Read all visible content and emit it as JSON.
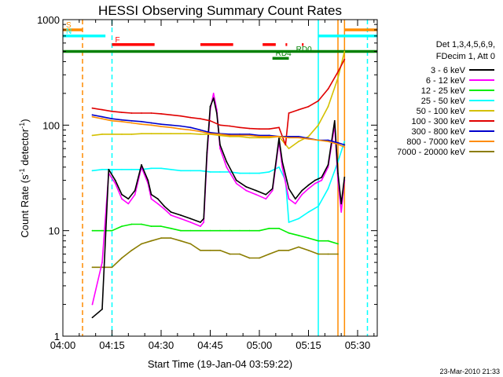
{
  "chart_data": {
    "type": "line",
    "title": "HESSI Observing Summary Count Rates",
    "xlabel": "Start Time (19-Jan-04 03:59:22)",
    "ylabel_main": "Count Rate (s",
    "ylabel_sup1": "-1",
    "ylabel_mid": " detector",
    "ylabel_sup2": "-1",
    "ylabel_end": ")",
    "yscale": "log",
    "ylim": [
      1,
      1000
    ],
    "xlim_minutes": [
      0,
      96
    ],
    "y_ticks": [
      {
        "v": 1,
        "label": "1"
      },
      {
        "v": 10,
        "label": "10"
      },
      {
        "v": 100,
        "label": "100"
      },
      {
        "v": 1000,
        "label": "1000"
      }
    ],
    "x_ticks": [
      {
        "m": 0,
        "label": "04:00"
      },
      {
        "m": 15,
        "label": "04:15"
      },
      {
        "m": 30,
        "label": "04:30"
      },
      {
        "m": 45,
        "label": "04:45"
      },
      {
        "m": 60,
        "label": "05:00"
      },
      {
        "m": 75,
        "label": "05:15"
      },
      {
        "m": 90,
        "label": "05:30"
      }
    ],
    "legend_header": [
      "Det 1,3,4,5,6,9,",
      "FDecim 1, Att 0"
    ],
    "legend": [
      {
        "label": "3 - 6 keV",
        "color": "#000000"
      },
      {
        "label": "6 - 12 keV",
        "color": "#ff00ff"
      },
      {
        "label": "12 - 25 keV",
        "color": "#00ee00"
      },
      {
        "label": "25 - 50 keV",
        "color": "#00ffff"
      },
      {
        "label": "50 - 100 keV",
        "color": "#d4c000"
      },
      {
        "label": "100 - 300 keV",
        "color": "#e00000"
      },
      {
        "label": "300 - 800 keV",
        "color": "#0000cc"
      },
      {
        "label": "800 - 7000 keV",
        "color": "#ff8c00"
      },
      {
        "label": "7000 - 20000 keV",
        "color": "#8b7d00"
      }
    ],
    "flags": [
      {
        "label": "S",
        "color": "#ff8c00",
        "segments": [
          [
            0,
            6
          ],
          [
            86,
            96
          ]
        ],
        "level": 800
      },
      {
        "label": "N",
        "color": "#00ffff",
        "segments": [
          [
            0,
            13
          ],
          [
            78,
            96
          ]
        ],
        "level": 700
      },
      {
        "label": "F",
        "color": "#ff0000",
        "segments": [
          [
            15,
            28
          ],
          [
            42,
            52
          ],
          [
            61,
            65
          ],
          [
            68,
            68.5
          ],
          [
            73,
            73.5
          ]
        ],
        "level": 580
      },
      {
        "label": "",
        "color": "#008000",
        "segments": [
          [
            0,
            96
          ]
        ],
        "level": 500
      },
      {
        "label": "RD0",
        "color": "#008000",
        "segments": [],
        "level": 470
      },
      {
        "label": "RD4",
        "color": "#008000",
        "segments": [
          [
            64,
            69
          ]
        ],
        "level": 430
      }
    ],
    "vlines": [
      {
        "m": 6,
        "color": "#ff8c00",
        "dashed": true
      },
      {
        "m": 15,
        "color": "#00ffff",
        "dashed": true
      },
      {
        "m": 78,
        "color": "#00ffff",
        "dashed": false
      },
      {
        "m": 84,
        "color": "#ff8c00",
        "dashed": false
      },
      {
        "m": 86,
        "color": "#ff8c00",
        "dashed": false
      },
      {
        "m": 93,
        "color": "#00ffff",
        "dashed": true
      }
    ],
    "series": [
      {
        "name": "7000 - 20000 keV",
        "color": "#8b7d00",
        "x": [
          9,
          12,
          15,
          18,
          21,
          24,
          27,
          30,
          33,
          36,
          39,
          42,
          45,
          48,
          51,
          54,
          57,
          60,
          63,
          66,
          69,
          72,
          75,
          78,
          81,
          84
        ],
        "y": [
          4.5,
          4.5,
          4.5,
          5.5,
          6.5,
          7.5,
          8,
          8.5,
          8.5,
          8,
          7.5,
          6.5,
          6.5,
          6.5,
          6,
          6,
          5.5,
          5.5,
          6,
          6.5,
          6.5,
          7,
          6.5,
          6,
          6,
          6
        ]
      },
      {
        "name": "12 - 25 keV",
        "color": "#00ee00",
        "x": [
          9,
          12,
          15,
          18,
          21,
          24,
          27,
          30,
          33,
          36,
          39,
          42,
          45,
          48,
          51,
          54,
          57,
          60,
          63,
          66,
          69,
          72,
          75,
          78,
          81,
          84
        ],
        "y": [
          10,
          10,
          10,
          11,
          11.5,
          11.5,
          11,
          11,
          10.5,
          10,
          10,
          10,
          10,
          10,
          10,
          10,
          10,
          10,
          10.5,
          10.5,
          9.5,
          9,
          8.5,
          8,
          8,
          7.5
        ]
      },
      {
        "name": "25 - 50 keV",
        "color": "#00ffff",
        "x": [
          9,
          12,
          15,
          18,
          21,
          24,
          27,
          30,
          33,
          36,
          39,
          42,
          45,
          48,
          51,
          54,
          57,
          60,
          63,
          66,
          68,
          69,
          72,
          75,
          78,
          81,
          84,
          86
        ],
        "y": [
          37,
          38,
          38,
          38,
          38,
          38,
          39,
          39,
          38,
          37,
          37,
          37,
          36,
          36,
          36,
          35,
          35,
          35,
          36,
          40,
          30,
          12,
          13,
          15,
          17,
          25,
          45,
          70
        ]
      },
      {
        "name": "6 - 12 keV",
        "color": "#ff00ff",
        "x": [
          9,
          12,
          14,
          16,
          18,
          20,
          22,
          24,
          26,
          27,
          29,
          31,
          33,
          36,
          39,
          42,
          43,
          44,
          45,
          46,
          47,
          48,
          50,
          53,
          56,
          59,
          62,
          64,
          66,
          67,
          69,
          71,
          73,
          75,
          77,
          79,
          81,
          83,
          84,
          85,
          86
        ],
        "y": [
          2,
          5,
          35,
          28,
          20,
          18,
          22,
          40,
          28,
          20,
          18,
          16,
          14,
          13,
          12,
          11,
          12,
          50,
          140,
          200,
          140,
          60,
          40,
          28,
          24,
          22,
          20,
          24,
          70,
          40,
          20,
          18,
          22,
          25,
          28,
          30,
          40,
          100,
          30,
          15,
          30
        ]
      },
      {
        "name": "3 - 6 keV",
        "color": "#000000",
        "x": [
          9,
          12,
          14,
          16,
          18,
          20,
          22,
          24,
          26,
          27,
          29,
          31,
          33,
          36,
          39,
          42,
          43,
          44,
          45,
          46,
          47,
          48,
          50,
          53,
          56,
          59,
          62,
          64,
          66,
          67,
          69,
          71,
          73,
          75,
          77,
          79,
          81,
          83,
          84,
          85,
          86
        ],
        "y": [
          1.5,
          1.8,
          38,
          30,
          22,
          20,
          24,
          42,
          30,
          22,
          20,
          17,
          15,
          14,
          13,
          12,
          13,
          55,
          150,
          180,
          130,
          65,
          45,
          30,
          26,
          24,
          22,
          25,
          75,
          45,
          25,
          20,
          24,
          27,
          30,
          32,
          42,
          110,
          35,
          18,
          32
        ]
      },
      {
        "name": "50 - 100 keV",
        "color": "#d4c000",
        "x": [
          9,
          12,
          15,
          18,
          21,
          24,
          27,
          30,
          33,
          36,
          39,
          42,
          45,
          48,
          51,
          54,
          57,
          60,
          63,
          66,
          69,
          72,
          75,
          78,
          81,
          84,
          86
        ],
        "y": [
          80,
          82,
          82,
          82,
          82,
          83,
          83,
          83,
          83,
          83,
          83,
          82,
          82,
          80,
          78,
          78,
          76,
          76,
          76,
          78,
          60,
          70,
          78,
          100,
          150,
          280,
          500
        ]
      },
      {
        "name": "100 - 300 keV",
        "color": "#e00000",
        "x": [
          9,
          12,
          15,
          18,
          21,
          24,
          27,
          30,
          33,
          36,
          39,
          42,
          45,
          48,
          51,
          54,
          57,
          60,
          63,
          66,
          68,
          69,
          72,
          75,
          78,
          81,
          84,
          86
        ],
        "y": [
          145,
          140,
          135,
          132,
          130,
          130,
          130,
          128,
          125,
          122,
          118,
          115,
          110,
          100,
          98,
          95,
          93,
          92,
          92,
          95,
          65,
          130,
          140,
          150,
          170,
          220,
          320,
          420
        ]
      },
      {
        "name": "300 - 800 keV",
        "color": "#0000cc",
        "x": [
          9,
          12,
          15,
          18,
          21,
          24,
          27,
          30,
          33,
          36,
          39,
          42,
          45,
          48,
          51,
          54,
          57,
          60,
          63,
          66,
          69,
          72,
          75,
          78,
          81,
          84,
          86
        ],
        "y": [
          125,
          120,
          115,
          112,
          110,
          108,
          105,
          102,
          100,
          98,
          95,
          90,
          85,
          83,
          82,
          82,
          82,
          80,
          80,
          78,
          78,
          78,
          75,
          72,
          72,
          68,
          65
        ]
      },
      {
        "name": "800 - 7000 keV",
        "color": "#ff8c00",
        "x": [
          9,
          12,
          15,
          18,
          21,
          24,
          27,
          30,
          33,
          36,
          39,
          42,
          45,
          48,
          51,
          54,
          57,
          60,
          63,
          66,
          69,
          72,
          75,
          78,
          81,
          84,
          86
        ],
        "y": [
          120,
          115,
          110,
          108,
          105,
          102,
          100,
          97,
          95,
          92,
          90,
          87,
          83,
          82,
          80,
          80,
          80,
          78,
          78,
          78,
          76,
          76,
          74,
          72,
          70,
          66,
          62
        ]
      }
    ]
  },
  "footer": {
    "timestamp": "23-Mar-2010 21:33"
  }
}
